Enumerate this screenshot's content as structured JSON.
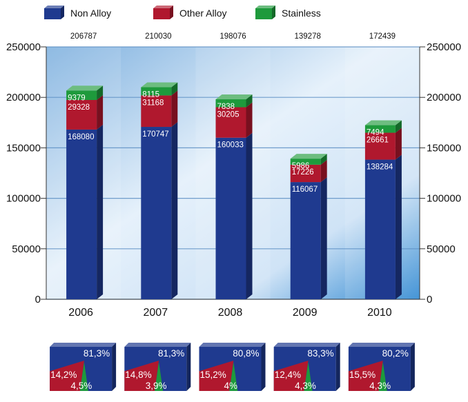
{
  "chart_data": {
    "type": "bar",
    "stacked": true,
    "categories": [
      "2006",
      "2007",
      "2008",
      "2009",
      "2010"
    ],
    "series": [
      {
        "name": "Non Alloy",
        "color": "#1f3a8f",
        "values": [
          168080,
          170747,
          160033,
          116067,
          138284
        ]
      },
      {
        "name": "Other Alloy",
        "color": "#b0182e",
        "values": [
          29328,
          31168,
          30205,
          17226,
          26661
        ]
      },
      {
        "name": "Stainless",
        "color": "#1e9a3c",
        "values": [
          9379,
          8115,
          7838,
          5986,
          7494
        ]
      }
    ],
    "totals": [
      206787,
      210030,
      198076,
      139278,
      172439
    ],
    "y_ticks": [
      0,
      50000,
      100000,
      150000,
      200000,
      250000
    ],
    "y_tick_labels": [
      "0",
      "50000",
      "100000",
      "150000",
      "200000",
      "250000"
    ],
    "ylim": [
      0,
      250000
    ],
    "axes": "left-and-right",
    "grid": true,
    "legend_position": "top-left",
    "shares": [
      {
        "non_alloy": "81,3%",
        "other_alloy": "14,2%",
        "stainless": "4,5%"
      },
      {
        "non_alloy": "81,3%",
        "other_alloy": "14,8%",
        "stainless": "3,9%"
      },
      {
        "non_alloy": "80,8%",
        "other_alloy": "15,2%",
        "stainless": "4%"
      },
      {
        "non_alloy": "83,3%",
        "other_alloy": "12,4%",
        "stainless": "4,3%"
      },
      {
        "non_alloy": "80,2%",
        "other_alloy": "15,5%",
        "stainless": "4,3%"
      }
    ]
  }
}
